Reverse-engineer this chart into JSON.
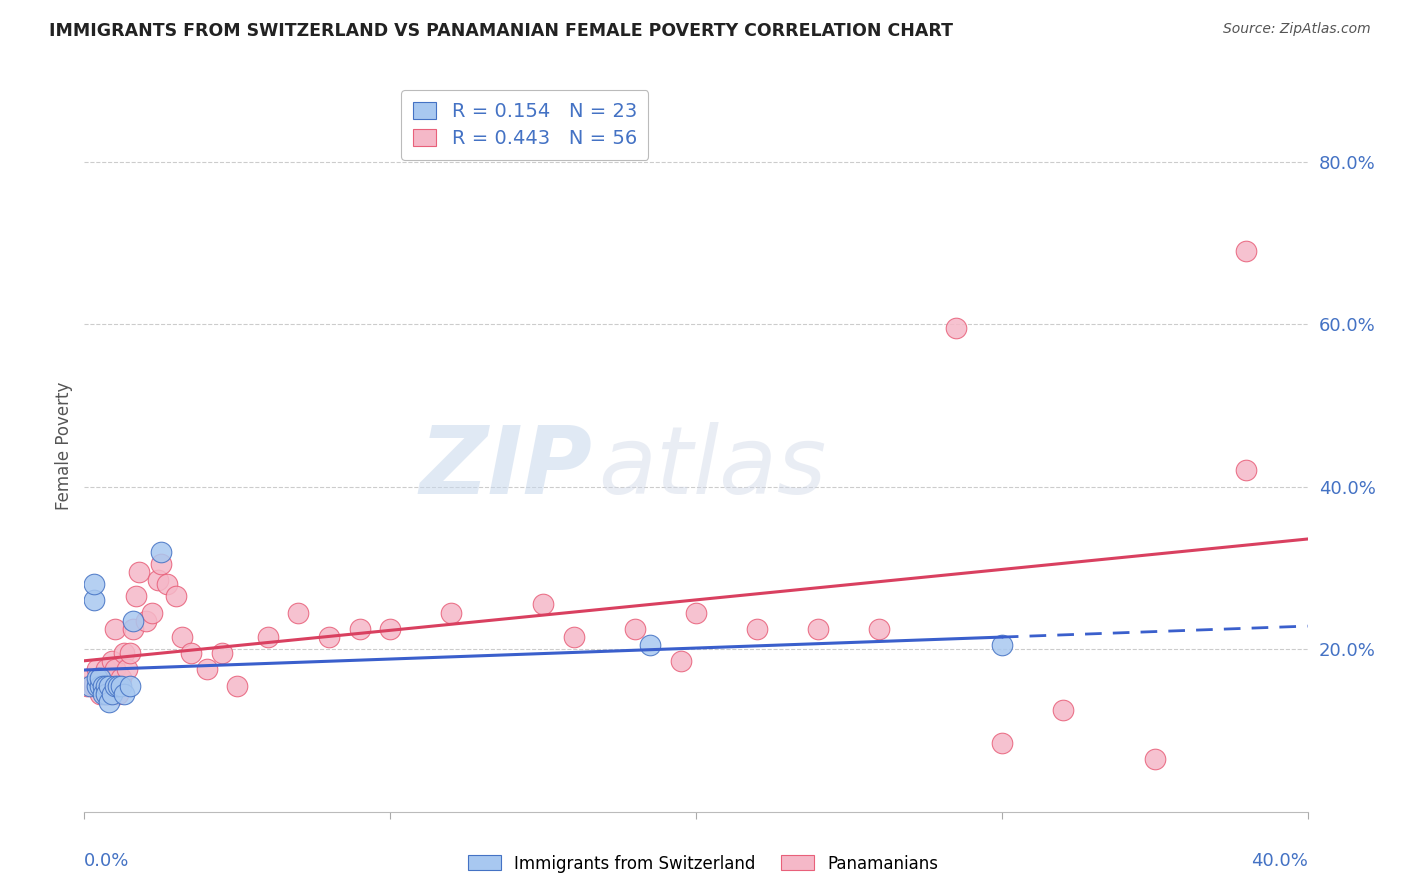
{
  "title": "IMMIGRANTS FROM SWITZERLAND VS PANAMANIAN FEMALE POVERTY CORRELATION CHART",
  "source": "Source: ZipAtlas.com",
  "ylabel": "Female Poverty",
  "xlim": [
    0.0,
    0.4
  ],
  "ylim": [
    0.0,
    0.9
  ],
  "yticks": [
    0.2,
    0.4,
    0.6,
    0.8
  ],
  "xticks": [
    0.0,
    0.1,
    0.2,
    0.3,
    0.4
  ],
  "blue_R": "0.154",
  "blue_N": "23",
  "pink_R": "0.443",
  "pink_N": "56",
  "blue_color": "#A8C8F0",
  "pink_color": "#F5B8C8",
  "blue_edge_color": "#4472C4",
  "pink_edge_color": "#E8607A",
  "blue_line_color": "#3A5FCC",
  "pink_line_color": "#D94060",
  "label_color": "#4472C4",
  "watermark_color": "#D8E8F8",
  "blue_points_x": [
    0.002,
    0.003,
    0.003,
    0.004,
    0.004,
    0.005,
    0.005,
    0.006,
    0.006,
    0.007,
    0.007,
    0.008,
    0.008,
    0.009,
    0.01,
    0.011,
    0.012,
    0.013,
    0.015,
    0.016,
    0.025,
    0.185,
    0.3
  ],
  "blue_points_y": [
    0.155,
    0.26,
    0.28,
    0.155,
    0.165,
    0.155,
    0.165,
    0.155,
    0.145,
    0.155,
    0.145,
    0.155,
    0.135,
    0.145,
    0.155,
    0.155,
    0.155,
    0.145,
    0.155,
    0.235,
    0.32,
    0.205,
    0.205
  ],
  "pink_points_x": [
    0.001,
    0.002,
    0.003,
    0.004,
    0.004,
    0.005,
    0.005,
    0.006,
    0.006,
    0.007,
    0.007,
    0.008,
    0.008,
    0.009,
    0.009,
    0.01,
    0.01,
    0.011,
    0.012,
    0.013,
    0.014,
    0.015,
    0.016,
    0.017,
    0.018,
    0.02,
    0.022,
    0.024,
    0.025,
    0.027,
    0.03,
    0.032,
    0.035,
    0.04,
    0.045,
    0.05,
    0.06,
    0.07,
    0.08,
    0.09,
    0.1,
    0.12,
    0.15,
    0.16,
    0.18,
    0.2,
    0.22,
    0.24,
    0.26,
    0.3,
    0.32,
    0.35,
    0.38,
    0.38,
    0.285,
    0.195
  ],
  "pink_points_y": [
    0.155,
    0.165,
    0.155,
    0.175,
    0.155,
    0.165,
    0.145,
    0.165,
    0.155,
    0.175,
    0.145,
    0.165,
    0.145,
    0.155,
    0.185,
    0.175,
    0.225,
    0.145,
    0.165,
    0.195,
    0.175,
    0.195,
    0.225,
    0.265,
    0.295,
    0.235,
    0.245,
    0.285,
    0.305,
    0.28,
    0.265,
    0.215,
    0.195,
    0.175,
    0.195,
    0.155,
    0.215,
    0.245,
    0.215,
    0.225,
    0.225,
    0.245,
    0.255,
    0.215,
    0.225,
    0.245,
    0.225,
    0.225,
    0.225,
    0.085,
    0.125,
    0.065,
    0.42,
    0.69,
    0.595,
    0.185
  ]
}
